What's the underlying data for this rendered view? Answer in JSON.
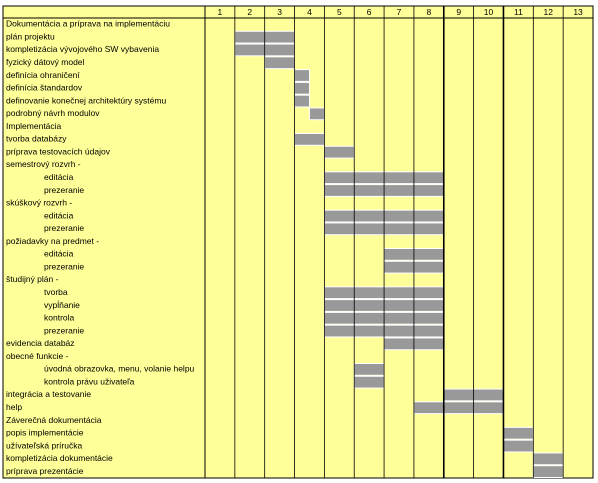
{
  "header": {
    "weeks": [
      1,
      2,
      3,
      4,
      5,
      6,
      7,
      8,
      9,
      10,
      11,
      12,
      13
    ]
  },
  "rows": [
    {
      "label": "Dokumentácia a príprava na implementáciu"
    },
    {
      "label": "plán projektu",
      "start": 1,
      "end": 3
    },
    {
      "label": "kompletizácia vývojového SW vybavenia",
      "start": 1,
      "end": 3
    },
    {
      "label": "fyzický dátový model",
      "start": 2,
      "end": 3
    },
    {
      "label": "definícia ohraničení",
      "start": 3,
      "end": 3.5
    },
    {
      "label": "definícia štandardov",
      "start": 3,
      "end": 3.5
    },
    {
      "label": "definovanie konečnej architektúry systému",
      "start": 3,
      "end": 3.5
    },
    {
      "label": "podrobný návrh modulov",
      "start": 3.5,
      "end": 4
    },
    {
      "label": "Implementácia"
    },
    {
      "label": "tvorba databázy",
      "start": 3,
      "end": 4
    },
    {
      "label": "príprava testovacích údajov",
      "start": 4,
      "end": 5
    },
    {
      "label": "semestrový rozvrh -",
      "items": [
        {
          "label": "editácia",
          "start": 4,
          "end": 8
        },
        {
          "label": "prezeranie",
          "start": 4,
          "end": 8
        }
      ]
    },
    {
      "label": "skúškový rozvrh -",
      "items": [
        {
          "label": "editácia",
          "start": 4,
          "end": 8
        },
        {
          "label": "prezeranie",
          "start": 4,
          "end": 8
        }
      ]
    },
    {
      "label": "požiadavky na predmet -",
      "items": [
        {
          "label": "editácia",
          "start": 6,
          "end": 8
        },
        {
          "label": "prezeranie",
          "start": 6,
          "end": 8
        }
      ]
    },
    {
      "label": "študijný plán -",
      "items": [
        {
          "label": "tvorba",
          "start": 4,
          "end": 8
        },
        {
          "label": "vypĺňanie",
          "start": 4,
          "end": 8
        },
        {
          "label": "kontrola",
          "start": 4,
          "end": 8
        },
        {
          "label": "prezeranie",
          "start": 4,
          "end": 8
        }
      ]
    },
    {
      "label": "evidencia databáz",
      "start": 6,
      "end": 8
    },
    {
      "label": "obecné funkcie -",
      "items": [
        {
          "label": "úvodná obrazovka, menu, volanie helpu",
          "start": 5,
          "end": 6
        },
        {
          "label": "kontrola právu uživateľa",
          "start": 5,
          "end": 6
        }
      ]
    },
    {
      "label": "integrácia a testovanie",
      "start": 8,
      "end": 10
    },
    {
      "label": "help",
      "start": 7,
      "end": 10
    },
    {
      "label": "Záverečná dokumentácia"
    },
    {
      "label": "popis implementácie",
      "start": 10,
      "end": 11
    },
    {
      "label": "užívateľská príručka",
      "start": 10,
      "end": 11
    },
    {
      "label": "kompletizácia dokumentácie",
      "start": 11,
      "end": 12
    },
    {
      "label": "príprava prezentácie",
      "start": 11,
      "end": 12
    }
  ]
}
